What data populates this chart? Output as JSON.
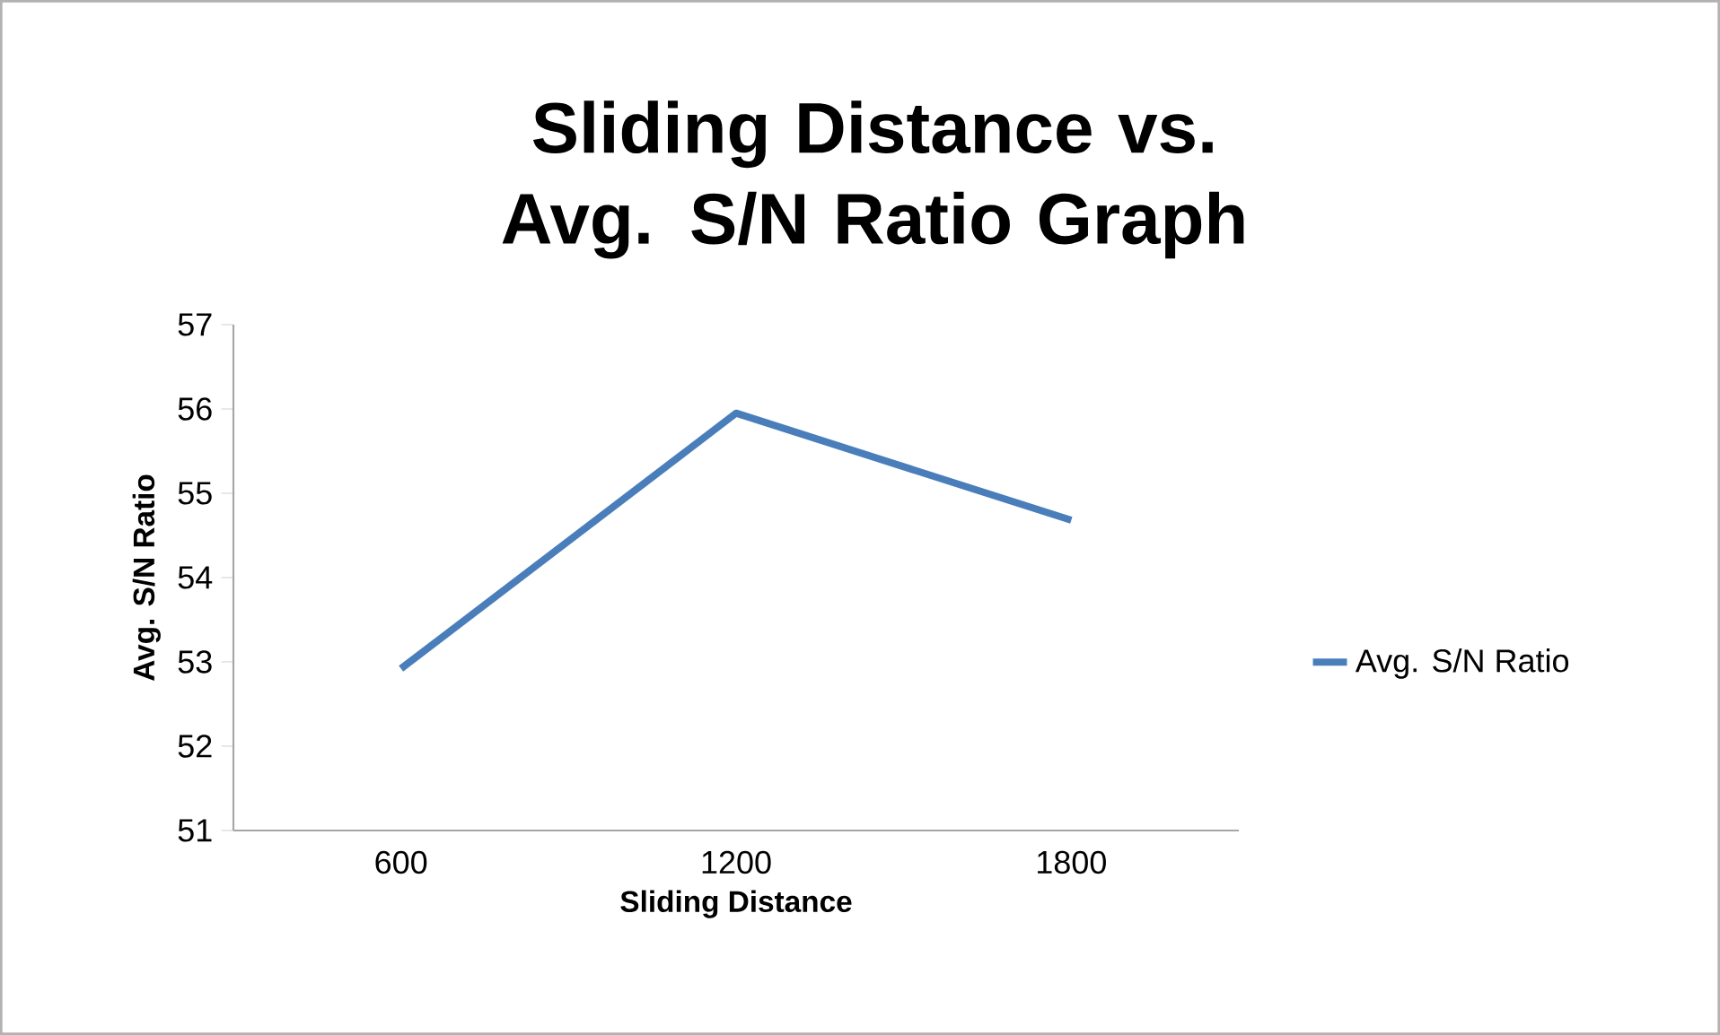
{
  "chart_data": {
    "type": "line",
    "title": "Sliding Distance vs. Avg. S/N Ratio Graph",
    "xlabel": "Sliding Distance",
    "ylabel": "Avg. S/N Ratio",
    "categories": [
      "600",
      "1200",
      "1800"
    ],
    "series": [
      {
        "name": "Avg. S/N Ratio",
        "color": "#4a7ebb",
        "values": [
          52.92,
          55.95,
          54.68
        ]
      }
    ],
    "ylim": [
      51,
      57
    ],
    "yticks": [
      51,
      52,
      53,
      54,
      55,
      56,
      57
    ],
    "legend": "right",
    "grid": false,
    "marker": "none",
    "line_style": "solid"
  }
}
